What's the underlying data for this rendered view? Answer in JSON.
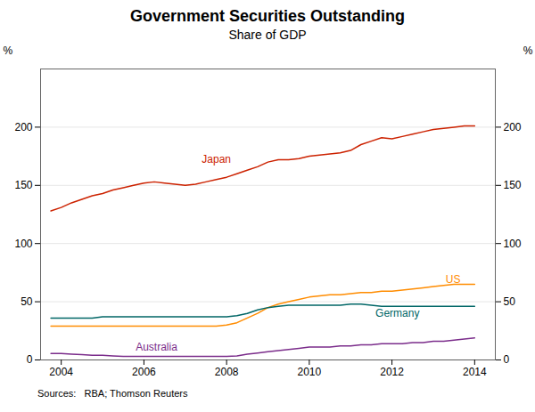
{
  "chart_data": {
    "type": "line",
    "title": "Government Securities Outstanding",
    "subtitle": "Share of GDP",
    "ylabel": "%",
    "y2label": "%",
    "source": "Sources:   RBA; Thomson Reuters",
    "xlim": [
      2003.5,
      2014.5
    ],
    "xticks": [
      2004,
      2006,
      2008,
      2010,
      2012,
      2014
    ],
    "ylim": [
      0,
      250
    ],
    "yticks": [
      0,
      50,
      100,
      150,
      200
    ],
    "grid": true,
    "x": [
      2003.75,
      2004.0,
      2004.25,
      2004.5,
      2004.75,
      2005.0,
      2005.25,
      2005.5,
      2005.75,
      2006.0,
      2006.25,
      2006.5,
      2006.75,
      2007.0,
      2007.25,
      2007.5,
      2007.75,
      2008.0,
      2008.25,
      2008.5,
      2008.75,
      2009.0,
      2009.25,
      2009.5,
      2009.75,
      2010.0,
      2010.25,
      2010.5,
      2010.75,
      2011.0,
      2011.25,
      2011.5,
      2011.75,
      2012.0,
      2012.25,
      2012.5,
      2012.75,
      2013.0,
      2013.25,
      2013.5,
      2013.75,
      2014.0
    ],
    "series": [
      {
        "name": "Japan",
        "color": "#cc2200",
        "values": [
          128,
          131,
          135,
          138,
          141,
          143,
          146,
          148,
          150,
          152,
          153,
          152,
          151,
          150,
          151,
          153,
          155,
          157,
          160,
          163,
          166,
          170,
          172,
          172,
          173,
          175,
          176,
          177,
          178,
          180,
          185,
          188,
          191,
          190,
          192,
          194,
          196,
          198,
          199,
          200,
          201,
          201
        ]
      },
      {
        "name": "US",
        "color": "#ff8c00",
        "values": [
          29,
          29,
          29,
          29,
          29,
          29,
          29,
          29,
          29,
          29,
          29,
          29,
          29,
          29,
          29,
          29,
          29,
          30,
          32,
          36,
          40,
          45,
          48,
          50,
          52,
          54,
          55,
          56,
          56,
          57,
          58,
          58,
          59,
          59,
          60,
          61,
          62,
          63,
          64,
          65,
          65,
          65
        ]
      },
      {
        "name": "Germany",
        "color": "#006666",
        "values": [
          36,
          36,
          36,
          36,
          36,
          37,
          37,
          37,
          37,
          37,
          37,
          37,
          37,
          37,
          37,
          37,
          37,
          37,
          38,
          40,
          43,
          45,
          46,
          47,
          47,
          47,
          47,
          47,
          47,
          48,
          48,
          47,
          46,
          46,
          46,
          46,
          46,
          46,
          46,
          46,
          46,
          46
        ]
      },
      {
        "name": "Australia",
        "color": "#7b2d8b",
        "values": [
          5.5,
          5.5,
          5,
          4.5,
          4,
          4,
          3.5,
          3,
          3,
          3,
          3,
          3,
          3,
          3,
          3,
          3,
          3,
          3,
          3.5,
          5,
          6,
          7,
          8,
          9,
          10,
          11,
          11,
          11,
          12,
          12,
          13,
          13,
          14,
          14,
          14,
          15,
          15,
          16,
          16,
          17,
          18,
          19
        ]
      }
    ],
    "annotations": [
      {
        "text": "Japan",
        "x": 2007.4,
        "y": 172,
        "color": "#cc2200"
      },
      {
        "text": "US",
        "x": 2013.3,
        "y": 69,
        "color": "#ff8c00"
      },
      {
        "text": "Germany",
        "x": 2011.6,
        "y": 40,
        "color": "#006666"
      },
      {
        "text": "Australia",
        "x": 2005.8,
        "y": 11,
        "color": "#7b2d8b"
      }
    ]
  }
}
